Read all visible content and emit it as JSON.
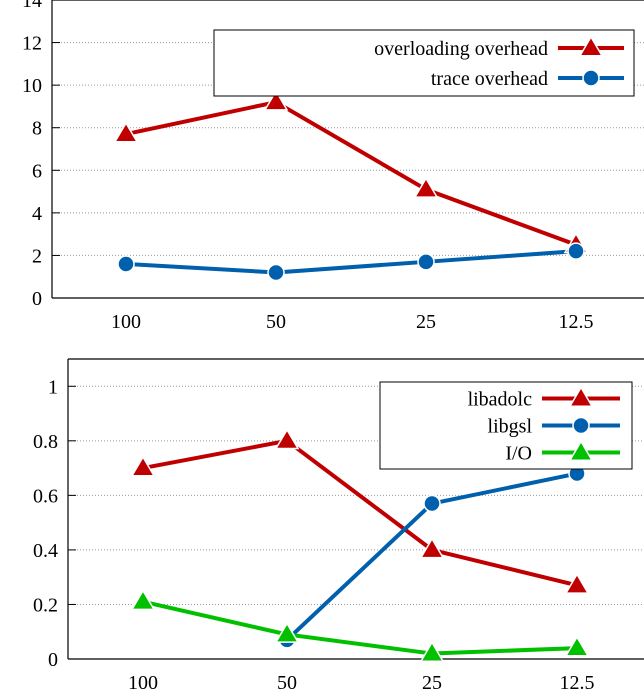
{
  "chart_data": [
    {
      "type": "line",
      "title": "",
      "xlabel": "",
      "ylabel": "",
      "categories": [
        "100",
        "50",
        "25",
        "12.5"
      ],
      "ylim": [
        0,
        14
      ],
      "yticks": [
        "0",
        "2",
        "4",
        "6",
        "8",
        "10",
        "12",
        "14"
      ],
      "grid": "horizontal dotted",
      "legend_position": "top-right",
      "series": [
        {
          "name": "overloading overhead",
          "values": [
            7.7,
            9.2,
            5.1,
            2.5
          ],
          "color": "#c00000",
          "marker": "triangle"
        },
        {
          "name": "trace  overhead",
          "values": [
            1.6,
            1.2,
            1.7,
            2.2
          ],
          "color": "#0060ad",
          "marker": "circle"
        }
      ]
    },
    {
      "type": "line",
      "title": "",
      "xlabel": "",
      "ylabel": "",
      "categories": [
        "100",
        "50",
        "25",
        "12.5"
      ],
      "ylim": [
        0,
        1.1
      ],
      "yticks": [
        "0",
        "0.2",
        "0.4",
        "0.6",
        "0.8",
        "1"
      ],
      "grid": "horizontal dotted",
      "legend_position": "top-right",
      "series": [
        {
          "name": "libadolc",
          "values": [
            0.7,
            0.8,
            0.4,
            0.27
          ],
          "color": "#c00000",
          "marker": "triangle"
        },
        {
          "name": "libgsl",
          "values": [
            null,
            0.07,
            0.57,
            0.68
          ],
          "color": "#0060ad",
          "marker": "circle"
        },
        {
          "name": "I/O",
          "values": [
            0.21,
            0.09,
            0.02,
            0.04
          ],
          "color": "#00c000",
          "marker": "triangle"
        }
      ]
    }
  ]
}
